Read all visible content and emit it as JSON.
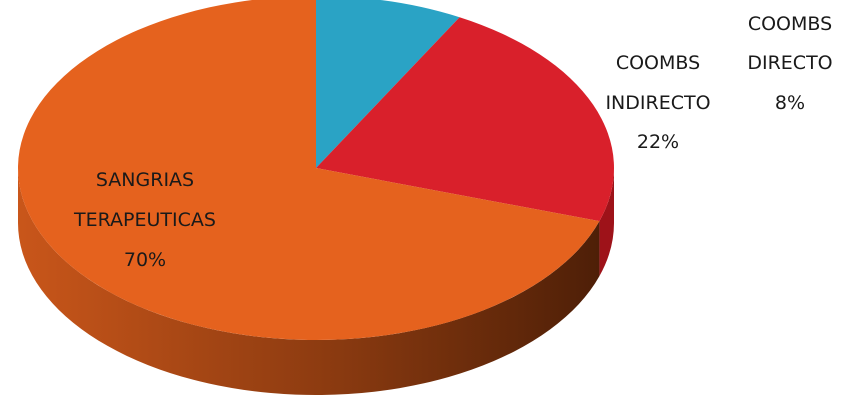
{
  "chart_data": {
    "type": "pie",
    "style": "3d",
    "slices": [
      {
        "label_lines": [
          "COOMBS",
          "DIRECTO"
        ],
        "value": 8,
        "value_label": "8%",
        "color": "#2aa3c5"
      },
      {
        "label_lines": [
          "COOMBS",
          "INDIRECTO"
        ],
        "value": 22,
        "value_label": "22%",
        "color": "#d9202b"
      },
      {
        "label_lines": [
          "SANGRIAS",
          "TERAPEUTICAS"
        ],
        "value": 70,
        "value_label": "70%",
        "color": "#e5621e"
      }
    ],
    "side_colors": [
      "#1b7895",
      "#9e1219",
      "#6a2a0a"
    ]
  }
}
